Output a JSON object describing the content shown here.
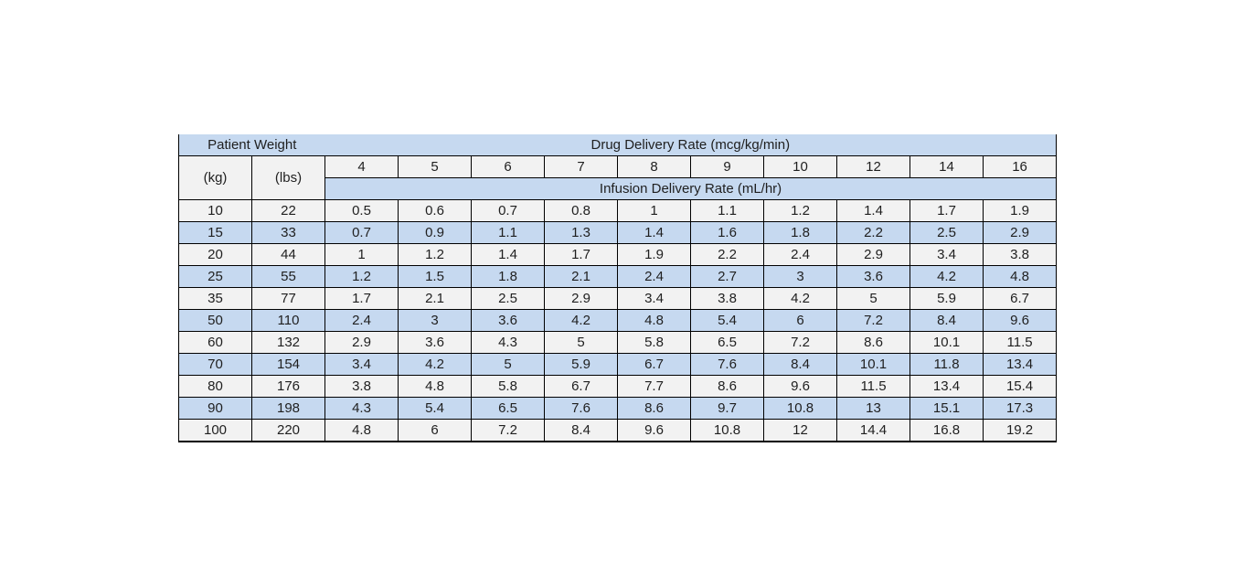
{
  "table": {
    "header": {
      "patient_weight_label": "Patient Weight",
      "drug_rate_label": "Drug Delivery Rate (mcg/kg/min)",
      "kg_label": "(kg)",
      "lbs_label": "(lbs)",
      "rate_columns": [
        "4",
        "5",
        "6",
        "7",
        "8",
        "9",
        "10",
        "12",
        "14",
        "16"
      ],
      "infusion_rate_label": "Infusion Delivery Rate (mL/hr)"
    },
    "rows": [
      {
        "kg": "10",
        "lbs": "22",
        "values": [
          "0.5",
          "0.6",
          "0.7",
          "0.8",
          "1",
          "1.1",
          "1.2",
          "1.4",
          "1.7",
          "1.9"
        ]
      },
      {
        "kg": "15",
        "lbs": "33",
        "values": [
          "0.7",
          "0.9",
          "1.1",
          "1.3",
          "1.4",
          "1.6",
          "1.8",
          "2.2",
          "2.5",
          "2.9"
        ]
      },
      {
        "kg": "20",
        "lbs": "44",
        "values": [
          "1",
          "1.2",
          "1.4",
          "1.7",
          "1.9",
          "2.2",
          "2.4",
          "2.9",
          "3.4",
          "3.8"
        ]
      },
      {
        "kg": "25",
        "lbs": "55",
        "values": [
          "1.2",
          "1.5",
          "1.8",
          "2.1",
          "2.4",
          "2.7",
          "3",
          "3.6",
          "4.2",
          "4.8"
        ]
      },
      {
        "kg": "35",
        "lbs": "77",
        "values": [
          "1.7",
          "2.1",
          "2.5",
          "2.9",
          "3.4",
          "3.8",
          "4.2",
          "5",
          "5.9",
          "6.7"
        ]
      },
      {
        "kg": "50",
        "lbs": "110",
        "values": [
          "2.4",
          "3",
          "3.6",
          "4.2",
          "4.8",
          "5.4",
          "6",
          "7.2",
          "8.4",
          "9.6"
        ]
      },
      {
        "kg": "60",
        "lbs": "132",
        "values": [
          "2.9",
          "3.6",
          "4.3",
          "5",
          "5.8",
          "6.5",
          "7.2",
          "8.6",
          "10.1",
          "11.5"
        ]
      },
      {
        "kg": "70",
        "lbs": "154",
        "values": [
          "3.4",
          "4.2",
          "5",
          "5.9",
          "6.7",
          "7.6",
          "8.4",
          "10.1",
          "11.8",
          "13.4"
        ]
      },
      {
        "kg": "80",
        "lbs": "176",
        "values": [
          "3.8",
          "4.8",
          "5.8",
          "6.7",
          "7.7",
          "8.6",
          "9.6",
          "11.5",
          "13.4",
          "15.4"
        ]
      },
      {
        "kg": "90",
        "lbs": "198",
        "values": [
          "4.3",
          "5.4",
          "6.5",
          "7.6",
          "8.6",
          "9.7",
          "10.8",
          "13",
          "15.1",
          "17.3"
        ]
      },
      {
        "kg": "100",
        "lbs": "220",
        "values": [
          "4.8",
          "6",
          "7.2",
          "8.4",
          "9.6",
          "10.8",
          "12",
          "14.4",
          "16.8",
          "19.2"
        ]
      }
    ],
    "colors": {
      "band_blue": "#c6d9f0",
      "row_gray": "#f2f2f2",
      "border": "#000000",
      "text": "#1f1f1f",
      "page_background": "#ffffff"
    }
  }
}
